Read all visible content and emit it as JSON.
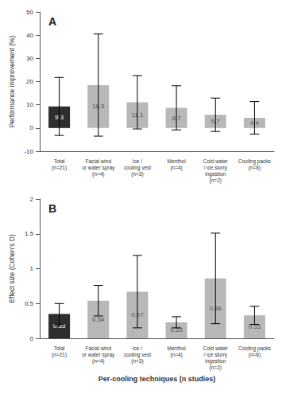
{
  "chart_data": [
    {
      "type": "bar",
      "title": "A",
      "ylabel": "Performance improvement (%)",
      "categories": [
        "Total\n(n=21)",
        "Facial wind\nor water spray\n(n=4)",
        "Ice /\ncooling vest\n(n=3)",
        "Menthol\n(n=4)",
        "Cold water\n/ ice slurry\ningestion\n(n=2)",
        "Cooling packs\n(n=8)"
      ],
      "values": [
        9.3,
        18.5,
        11.1,
        8.7,
        5.7,
        4.4
      ],
      "errors": [
        12.5,
        22.0,
        11.5,
        9.5,
        7.2,
        7.0
      ],
      "colors": [
        "#2e2e2e",
        "#b8b8b8",
        "#b8b8b8",
        "#b8b8b8",
        "#b8b8b8",
        "#b8b8b8"
      ],
      "data_labels": true,
      "ylim": [
        -10,
        50
      ],
      "yticks": [
        -10,
        0,
        10,
        20,
        30,
        40,
        50
      ],
      "grid": false
    },
    {
      "type": "bar",
      "title": "B",
      "ylabel": "Effect size (Cohen's D)",
      "xlabel": "Per-cooling techniques (n studies)",
      "categories": [
        "Total\n(n=21)",
        "Facial wind\nor water spray\n(n=4)",
        "Ice /\ncooling vest\n(n=3)",
        "Menthol\n(n=4)",
        "Cold water\n/ ice slurry\ningestion\n(n=2)",
        "Cooling packs\n(n=8)"
      ],
      "values": [
        0.35,
        0.54,
        0.67,
        0.23,
        0.86,
        0.33
      ],
      "errors": [
        0.15,
        0.22,
        0.52,
        0.08,
        0.65,
        0.13
      ],
      "colors": [
        "#2e2e2e",
        "#b8b8b8",
        "#b8b8b8",
        "#b8b8b8",
        "#b8b8b8",
        "#b8b8b8"
      ],
      "data_labels": true,
      "ylim": [
        0,
        2
      ],
      "yticks": [
        0,
        0.5,
        1,
        1.5,
        2
      ],
      "grid": false
    }
  ]
}
